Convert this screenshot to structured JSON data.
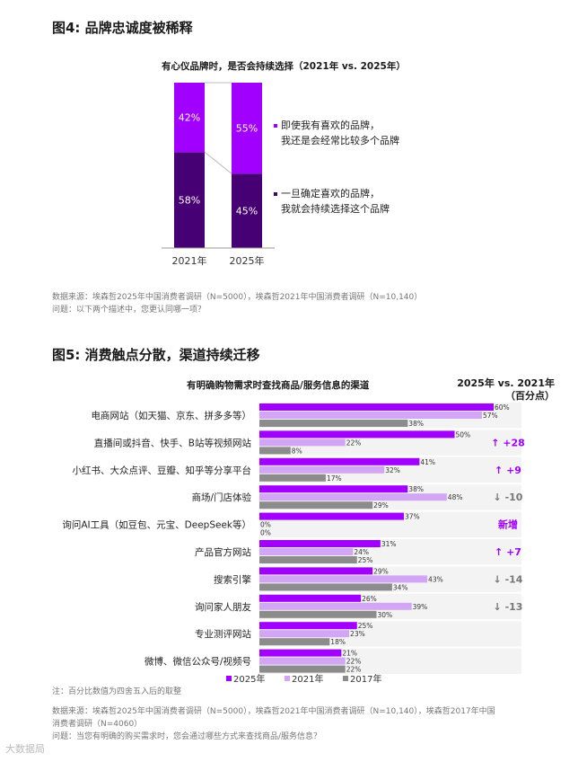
{
  "figure4": {
    "title": "图4: 品牌忠诚度被稀释",
    "subtitle": "有心仪品牌时，是否会持续选择（2021年 vs. 2025年）",
    "source": "数据来源：埃森哲2025年中国消费者调研（N=5000），埃森哲2021年中国消费者调研（N=10,140）",
    "question": "问题：以下两个描述中，您更认同哪一项？",
    "legend": [
      {
        "line1": "即使我有喜欢的品牌，",
        "line2": "我还是会经常比较多个品牌",
        "color": "#A100FF"
      },
      {
        "line1": "一旦确定喜欢的品牌，",
        "line2": "我就会持续选择这个品牌",
        "color": "#460073"
      }
    ]
  },
  "figure5": {
    "title": "图5: 消费触点分散，渠道持续迁移",
    "subtitle": "有明确购物需求时查找商品/服务信息的渠道",
    "compare_header_line1": "2025年 vs. 2021年",
    "compare_header_line2": "（百分点）",
    "note": "注：百分比数值为四舍五入后的取整",
    "source_line1": "数据来源：埃森哲2025年中国消费者调研（N=5000），埃森哲2021年中国消费者调研（N=10,140），埃森哲2017年中国",
    "source_line2": "消费者调研（N=4060）",
    "question": "问题：当您有明确的购买需求时，您会通过哪些方式来查找商品/服务信息？",
    "watermark": "大数据局"
  },
  "chart_data": [
    {
      "type": "bar",
      "stacked": true,
      "title": "有心仪品牌时，是否会持续选择（2021年 vs. 2025年）",
      "categories": [
        "2021年",
        "2025年"
      ],
      "series": [
        {
          "name": "一旦确定喜欢的品牌，我就会持续选择这个品牌",
          "values": [
            58,
            45
          ],
          "color": "#460073"
        },
        {
          "name": "即使我有喜欢的品牌，我还是会经常比较多个品牌",
          "values": [
            42,
            55
          ],
          "color": "#A100FF"
        }
      ],
      "value_suffix": "%",
      "ylim": [
        0,
        100
      ]
    },
    {
      "type": "bar",
      "orientation": "horizontal",
      "title": "有明确购物需求时查找商品/服务信息的渠道",
      "categories": [
        "电商网站（如天猫、京东、拼多多等）",
        "直播间或抖音、快手、B站等视频网站",
        "小红书、大众点评、豆瓣、知乎等分享平台",
        "商场/门店体验",
        "询问AI工具（如豆包、元宝、DeepSeek等）",
        "产品官方网站",
        "搜索引擎",
        "询问家人朋友",
        "专业测评网站",
        "微博、微信公众号/视频号"
      ],
      "series": [
        {
          "name": "2025年",
          "values": [
            60,
            50,
            41,
            38,
            37,
            31,
            29,
            26,
            25,
            21
          ],
          "color": "#A100FF"
        },
        {
          "name": "2021年",
          "values": [
            57,
            22,
            32,
            48,
            0,
            24,
            43,
            39,
            23,
            22
          ],
          "color": "#D3A6F5"
        },
        {
          "name": "2017年",
          "values": [
            38,
            8,
            17,
            29,
            0,
            25,
            34,
            30,
            18,
            22
          ],
          "color": "#8C8C8C"
        }
      ],
      "comparison": [
        "",
        "+28",
        "+9",
        "-10",
        "新增",
        "+7",
        "-14",
        "-13",
        "",
        ""
      ],
      "value_suffix": "%",
      "xlim": [
        0,
        100
      ],
      "legend_position": "bottom"
    }
  ]
}
